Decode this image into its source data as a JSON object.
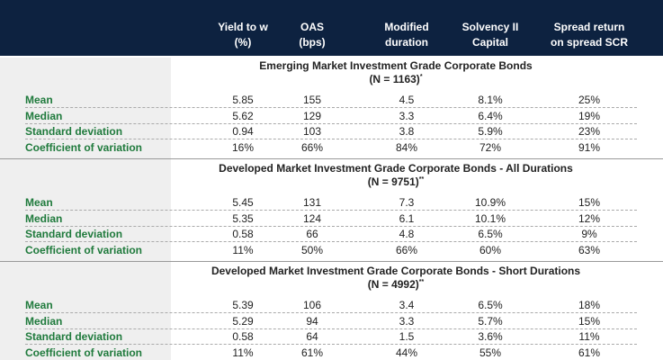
{
  "header": {
    "columns": [
      [
        "Yield to w",
        "(%)"
      ],
      [
        "OAS",
        "(bps)"
      ],
      [
        "Modified",
        "duration"
      ],
      [
        "Solvency II",
        "Capital"
      ],
      [
        "Spread  return",
        "on spread SCR"
      ]
    ]
  },
  "sections": [
    {
      "title": "Emerging Market Investment Grade Corporate Bonds",
      "subtitle": "(N = 1163)",
      "note": "*",
      "rows": [
        {
          "label": "Mean",
          "values": [
            "5.85",
            "155",
            "4.5",
            "8.1%",
            "25%"
          ]
        },
        {
          "label": "Median",
          "values": [
            "5.62",
            "129",
            "3.3",
            "6.4%",
            "19%"
          ]
        },
        {
          "label": "Standard deviation",
          "values": [
            "0.94",
            "103",
            "3.8",
            "5.9%",
            "23%"
          ]
        },
        {
          "label": "Coefficient of variation",
          "values": [
            "16%",
            "66%",
            "84%",
            "72%",
            "91%"
          ]
        }
      ]
    },
    {
      "title": "Developed Market Investment Grade Corporate Bonds - All Durations",
      "subtitle": "(N = 9751)",
      "note": "**",
      "rows": [
        {
          "label": "Mean",
          "values": [
            "5.45",
            "131",
            "7.3",
            "10.9%",
            "15%"
          ]
        },
        {
          "label": "Median",
          "values": [
            "5.35",
            "124",
            "6.1",
            "10.1%",
            "12%"
          ]
        },
        {
          "label": "Standard deviation",
          "values": [
            "0.58",
            "66",
            "4.8",
            "6.5%",
            "9%"
          ]
        },
        {
          "label": "Coefficient of variation",
          "values": [
            "11%",
            "50%",
            "66%",
            "60%",
            "63%"
          ]
        }
      ]
    },
    {
      "title": "Developed Market Investment Grade Corporate Bonds -  Short Durations",
      "subtitle": "(N = 4992)",
      "note": "**",
      "rows": [
        {
          "label": "Mean",
          "values": [
            "5.39",
            "106",
            "3.4",
            "6.5%",
            "18%"
          ]
        },
        {
          "label": "Median",
          "values": [
            "5.29",
            "94",
            "3.3",
            "5.7%",
            "15%"
          ]
        },
        {
          "label": "Standard deviation",
          "values": [
            "0.58",
            "64",
            "1.5",
            "3.6%",
            "11%"
          ]
        },
        {
          "label": "Coefficient of variation",
          "values": [
            "11%",
            "61%",
            "44%",
            "55%",
            "61%"
          ]
        }
      ]
    }
  ]
}
